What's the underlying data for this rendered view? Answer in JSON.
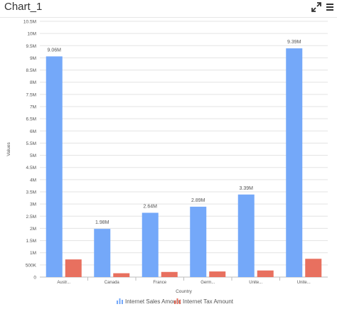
{
  "header": {
    "title": "Chart_1",
    "expand_icon": "expand-arrows-icon",
    "menu_icon": "hamburger-menu-icon"
  },
  "colors": {
    "series1": "#74a8f9",
    "series2": "#e8705f",
    "grid": "#e3e3e3",
    "axis_text": "#555555"
  },
  "chart_data": {
    "type": "bar",
    "xlabel": "Country",
    "ylabel": "Values",
    "ylim": [
      0,
      10500000
    ],
    "ytick_step": 500000,
    "yticks": [
      "0",
      "500K",
      "1M",
      "1.5M",
      "2M",
      "2.5M",
      "3M",
      "3.5M",
      "4M",
      "4.5M",
      "5M",
      "5.5M",
      "6M",
      "6.5M",
      "7M",
      "7.5M",
      "8M",
      "8.5M",
      "9M",
      "9.5M",
      "10M",
      "10.5M"
    ],
    "categories": [
      "Austr...",
      "Canada",
      "France",
      "Germ...",
      "Unite...",
      "Unite..."
    ],
    "series": [
      {
        "name": "Internet Sales Amount",
        "values": [
          9060000,
          1980000,
          2640000,
          2890000,
          3390000,
          9390000
        ],
        "labels": [
          "9.06M",
          "1.98M",
          "2.64M",
          "2.89M",
          "3.39M",
          "9.39M"
        ]
      },
      {
        "name": "Internet Tax Amount",
        "values": [
          725000,
          158000,
          211000,
          231000,
          271000,
          751000
        ]
      }
    ],
    "grid": true,
    "legend_position": "bottom"
  }
}
